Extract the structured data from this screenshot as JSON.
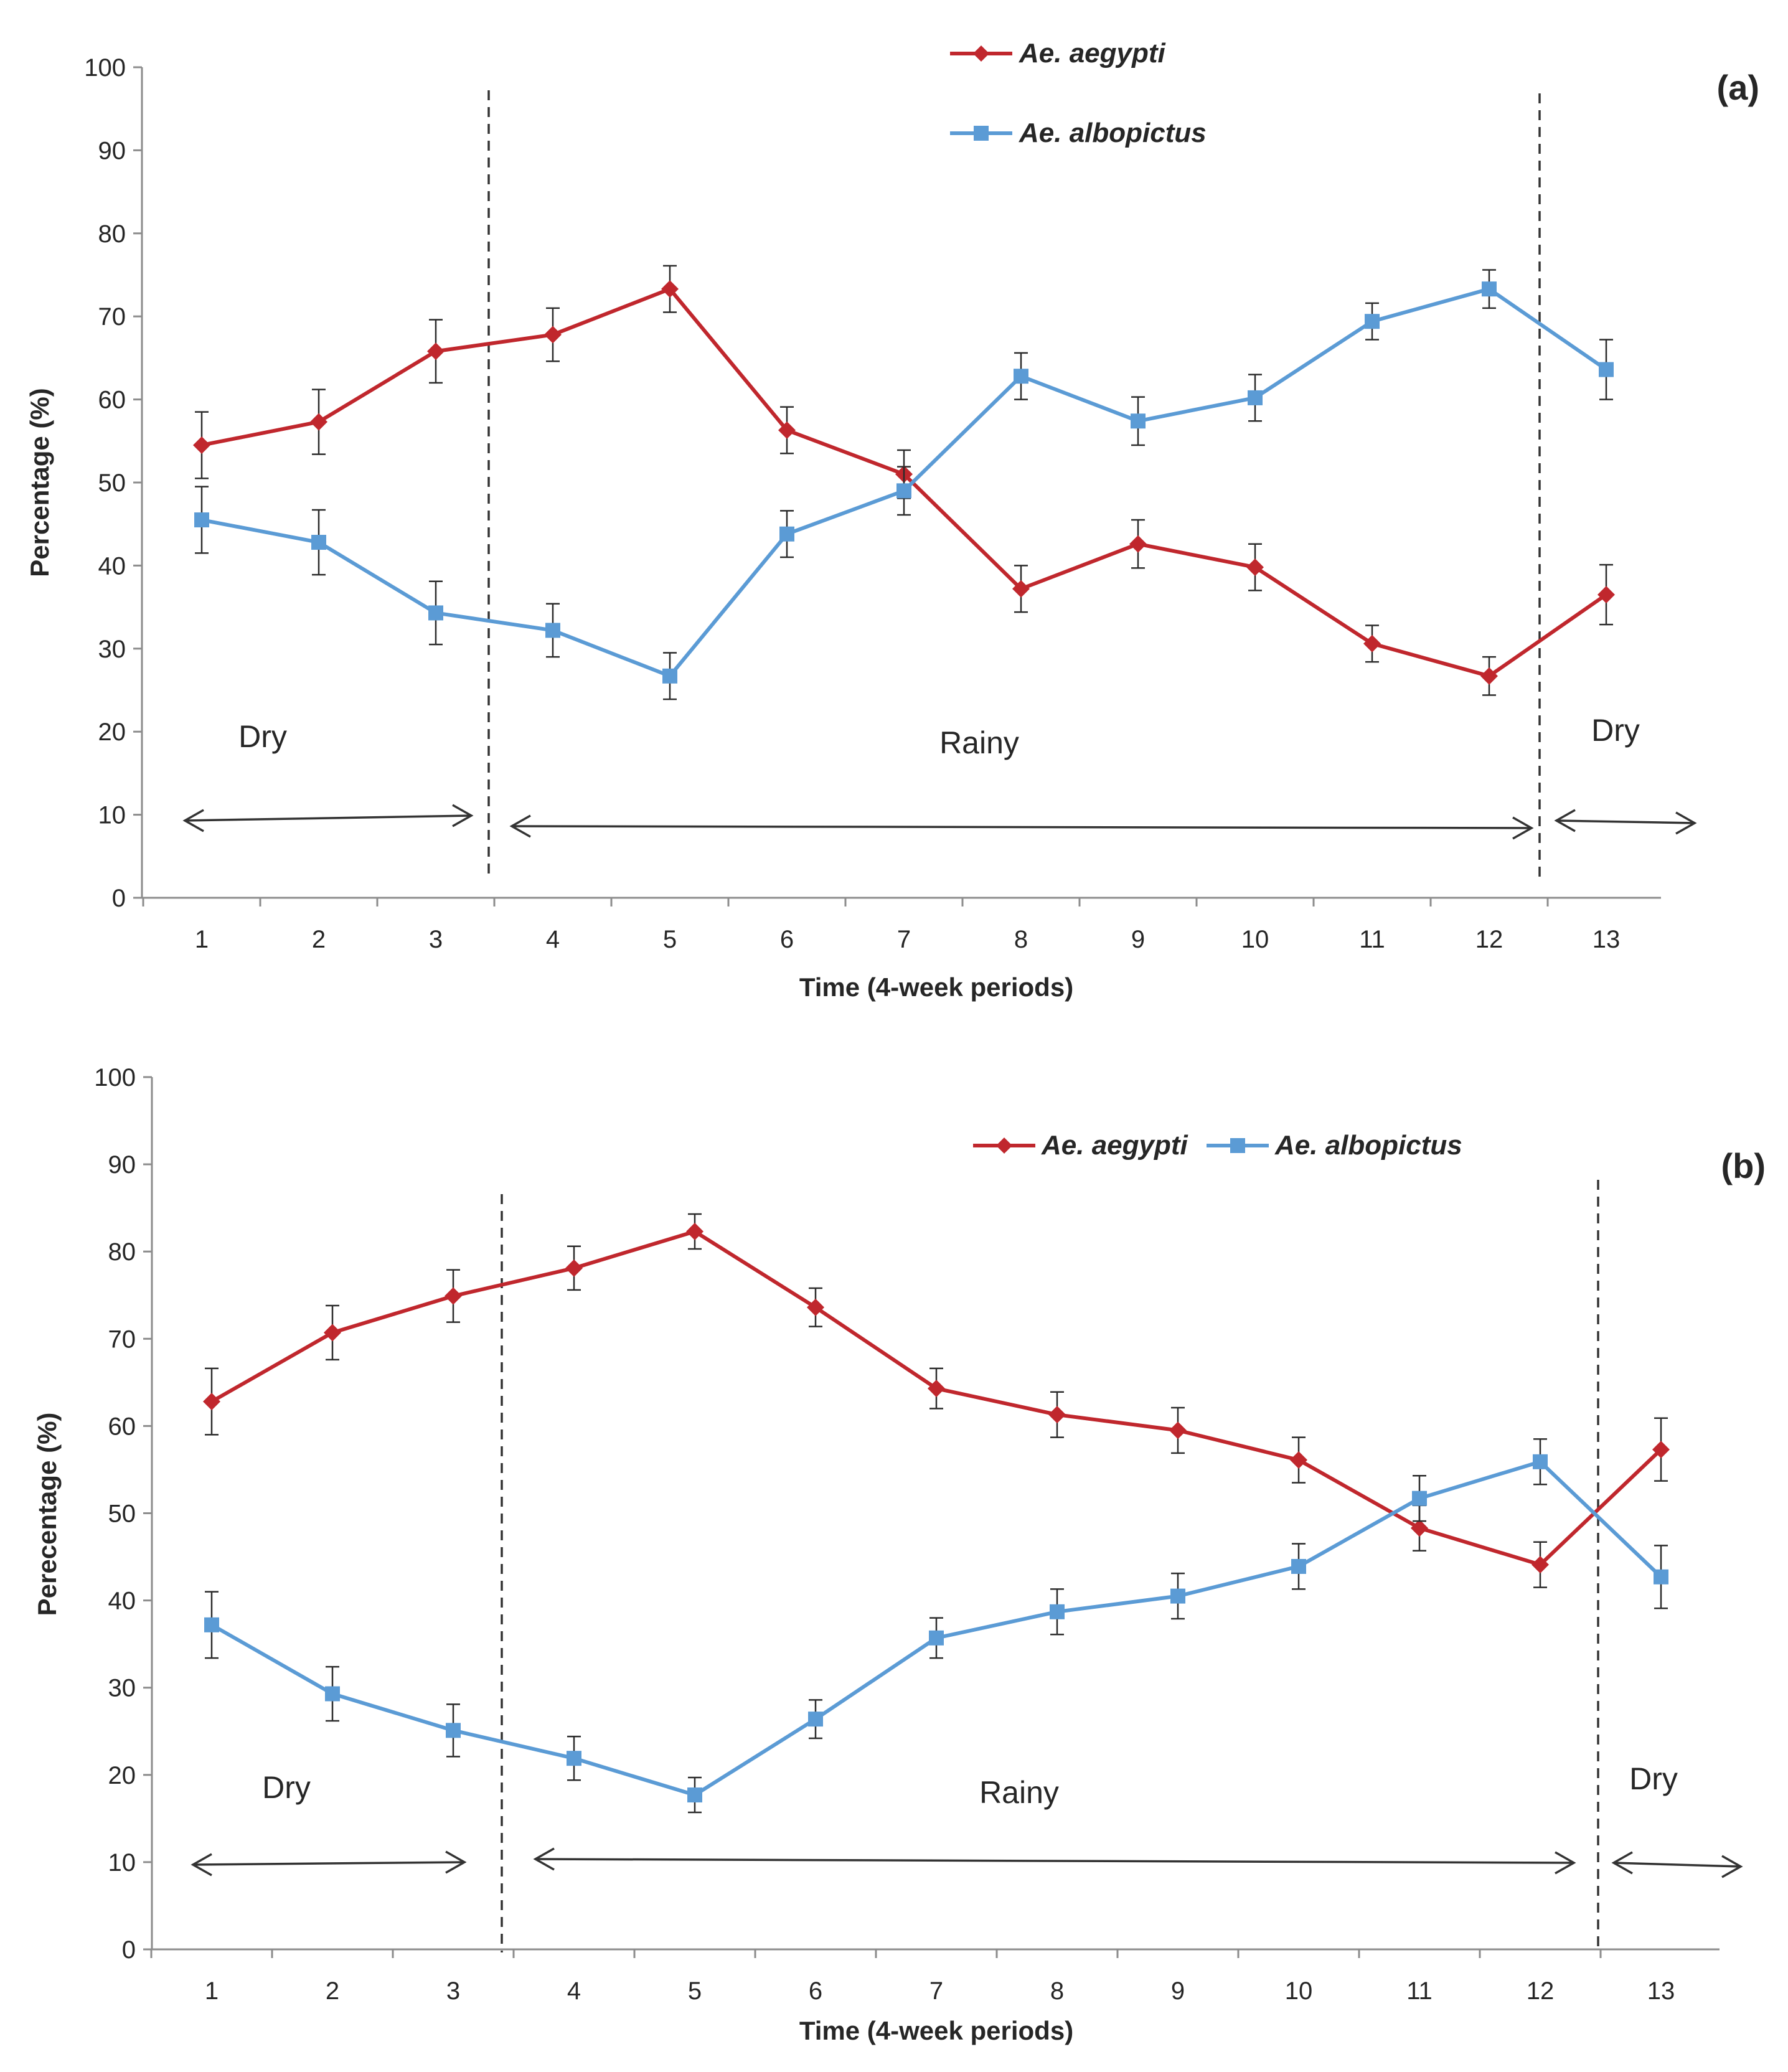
{
  "chart_data": [
    {
      "type": "line",
      "panel_label": "(a)",
      "xlabel": "Time (4-week periods)",
      "ylabel": "Percentage (%)",
      "ylim": [
        0,
        100
      ],
      "yticks": [
        "0",
        "10",
        "20",
        "30",
        "40",
        "50",
        "60",
        "70",
        "80",
        "90",
        "100"
      ],
      "categories": [
        "1",
        "2",
        "3",
        "4",
        "5",
        "6",
        "7",
        "8",
        "9",
        "10",
        "11",
        "12",
        "13"
      ],
      "legend_position": "top-center-stacked",
      "series": [
        {
          "name": "Ae. aegypti",
          "color": "#C0272D",
          "marker": "diamond",
          "values": [
            54.5,
            57.3,
            65.8,
            67.8,
            73.3,
            56.3,
            51.0,
            37.2,
            42.6,
            39.8,
            30.6,
            26.7,
            36.5
          ],
          "errors": [
            4.0,
            3.9,
            3.8,
            3.2,
            2.8,
            2.8,
            2.9,
            2.8,
            2.9,
            2.8,
            2.2,
            2.3,
            3.6
          ]
        },
        {
          "name": "Ae. albopictus",
          "color": "#5B9BD5",
          "marker": "square",
          "values": [
            45.5,
            42.8,
            34.3,
            32.2,
            26.7,
            43.8,
            49.0,
            62.8,
            57.4,
            60.2,
            69.4,
            73.3,
            63.6
          ],
          "errors": [
            4.0,
            3.9,
            3.8,
            3.2,
            2.8,
            2.8,
            2.9,
            2.8,
            2.9,
            2.8,
            2.2,
            2.3,
            3.6
          ]
        }
      ],
      "annotations": [
        {
          "text": "Dry",
          "season": "dry",
          "from_period": 1,
          "to_period": 3
        },
        {
          "text": "Rainy",
          "season": "rainy",
          "from_period": 4,
          "to_period": 12
        },
        {
          "text": "Dry",
          "season": "dry",
          "from_period": 13,
          "to_period": 13
        }
      ]
    },
    {
      "type": "line",
      "panel_label": "(b)",
      "xlabel": "Time (4-week periods)",
      "ylabel": "Perecentage (%)",
      "ylim": [
        0,
        100
      ],
      "yticks": [
        "0",
        "10",
        "20",
        "30",
        "40",
        "50",
        "60",
        "70",
        "80",
        "90",
        "100"
      ],
      "categories": [
        "1",
        "2",
        "3",
        "4",
        "5",
        "6",
        "7",
        "8",
        "9",
        "10",
        "11",
        "12",
        "13"
      ],
      "legend_position": "top-center-inline",
      "series": [
        {
          "name": "Ae. aegypti",
          "color": "#C0272D",
          "marker": "diamond",
          "values": [
            62.8,
            70.7,
            74.9,
            78.1,
            82.3,
            73.6,
            64.3,
            61.3,
            59.5,
            56.1,
            48.3,
            44.1,
            57.3
          ],
          "errors": [
            3.8,
            3.1,
            3.0,
            2.5,
            2.0,
            2.2,
            2.3,
            2.6,
            2.6,
            2.6,
            2.6,
            2.6,
            3.6
          ]
        },
        {
          "name": "Ae. albopictus",
          "color": "#5B9BD5",
          "marker": "square",
          "values": [
            37.2,
            29.3,
            25.1,
            21.9,
            17.7,
            26.4,
            35.7,
            38.7,
            40.5,
            43.9,
            51.7,
            55.9,
            42.7
          ],
          "errors": [
            3.8,
            3.1,
            3.0,
            2.5,
            2.0,
            2.2,
            2.3,
            2.6,
            2.6,
            2.6,
            2.6,
            2.6,
            3.6
          ]
        }
      ],
      "annotations": [
        {
          "text": "Dry",
          "season": "dry",
          "from_period": 1,
          "to_period": 3
        },
        {
          "text": "Rainy",
          "season": "rainy",
          "from_period": 4,
          "to_period": 12
        },
        {
          "text": "Dry",
          "season": "dry",
          "from_period": 13,
          "to_period": 13
        }
      ]
    }
  ]
}
